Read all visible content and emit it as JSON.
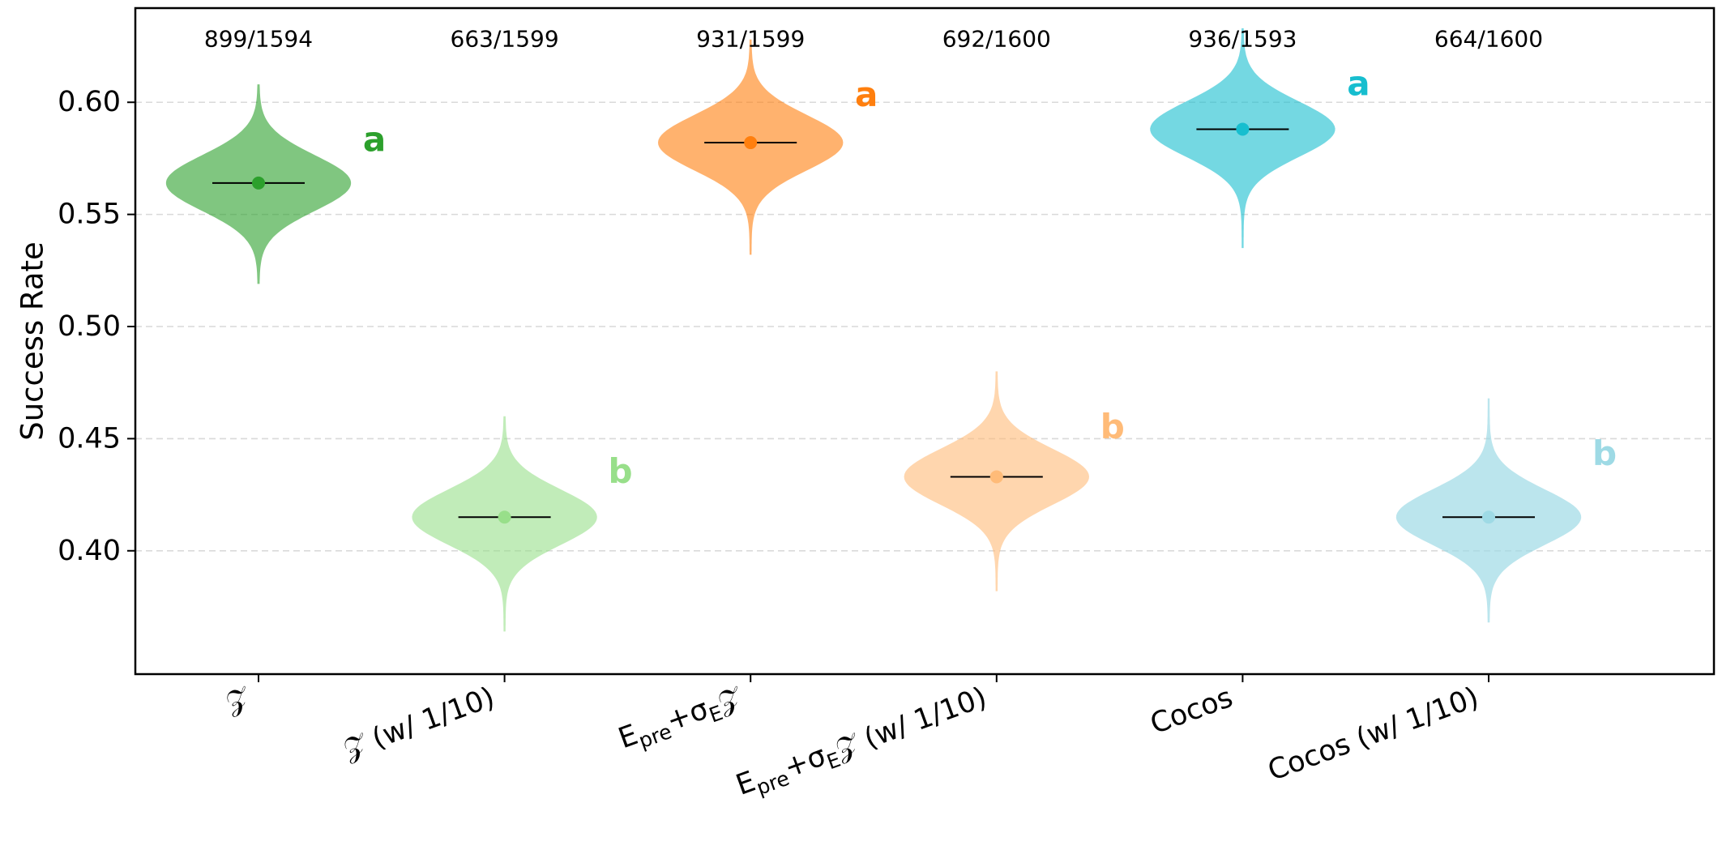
{
  "chart_data": {
    "type": "violin",
    "ylabel": "Success Rate",
    "ylim": [
      0.345,
      0.642
    ],
    "yticks": [
      "0.40",
      "0.45",
      "0.50",
      "0.55",
      "0.60"
    ],
    "grid": "horizontal-dashed",
    "categories": [
      {
        "label": "𝒵",
        "parts": [
          {
            "t": "𝒵"
          }
        ]
      },
      {
        "label": "𝒵 (w/ 1/10)",
        "parts": [
          {
            "t": "𝒵 (w/ 1/10)"
          }
        ]
      },
      {
        "label": "Epre+σE𝒵",
        "parts": [
          {
            "t": "E"
          },
          {
            "t": "pre",
            "sub": true
          },
          {
            "t": "+σ"
          },
          {
            "t": "E",
            "sub": true
          },
          {
            "t": "𝒵"
          }
        ]
      },
      {
        "label": "Epre+σE𝒵 (w/ 1/10)",
        "parts": [
          {
            "t": "E"
          },
          {
            "t": "pre",
            "sub": true
          },
          {
            "t": "+σ"
          },
          {
            "t": "E",
            "sub": true
          },
          {
            "t": "𝒵 (w/ 1/10)"
          }
        ]
      },
      {
        "label": "Cocos",
        "parts": [
          {
            "t": "Cocos"
          }
        ]
      },
      {
        "label": "Cocos (w/ 1/10)",
        "parts": [
          {
            "t": "Cocos (w/ 1/10)"
          }
        ]
      }
    ],
    "series": [
      {
        "count_label": "899/1594",
        "successes": 899,
        "trials": 1594,
        "mean": 0.564,
        "min": 0.519,
        "max": 0.608,
        "color": "#2ca02c",
        "fill_opacity": 0.6,
        "group_letter": "a"
      },
      {
        "count_label": "663/1599",
        "successes": 663,
        "trials": 1599,
        "mean": 0.415,
        "min": 0.364,
        "max": 0.46,
        "color": "#98df8a",
        "fill_opacity": 0.6,
        "group_letter": "b"
      },
      {
        "count_label": "931/1599",
        "successes": 931,
        "trials": 1599,
        "mean": 0.582,
        "min": 0.532,
        "max": 0.628,
        "color": "#ff7f0e",
        "fill_opacity": 0.6,
        "group_letter": "a"
      },
      {
        "count_label": "692/1600",
        "successes": 692,
        "trials": 1600,
        "mean": 0.433,
        "min": 0.382,
        "max": 0.48,
        "color": "#ffbb78",
        "fill_opacity": 0.6,
        "group_letter": "b"
      },
      {
        "count_label": "936/1593",
        "successes": 936,
        "trials": 1593,
        "mean": 0.588,
        "min": 0.535,
        "max": 0.633,
        "color": "#17becf",
        "fill_opacity": 0.6,
        "group_letter": "a"
      },
      {
        "count_label": "664/1600",
        "successes": 664,
        "trials": 1600,
        "mean": 0.415,
        "min": 0.368,
        "max": 0.468,
        "color": "#9edae5",
        "fill_opacity": 0.7,
        "group_letter": "b"
      }
    ]
  }
}
